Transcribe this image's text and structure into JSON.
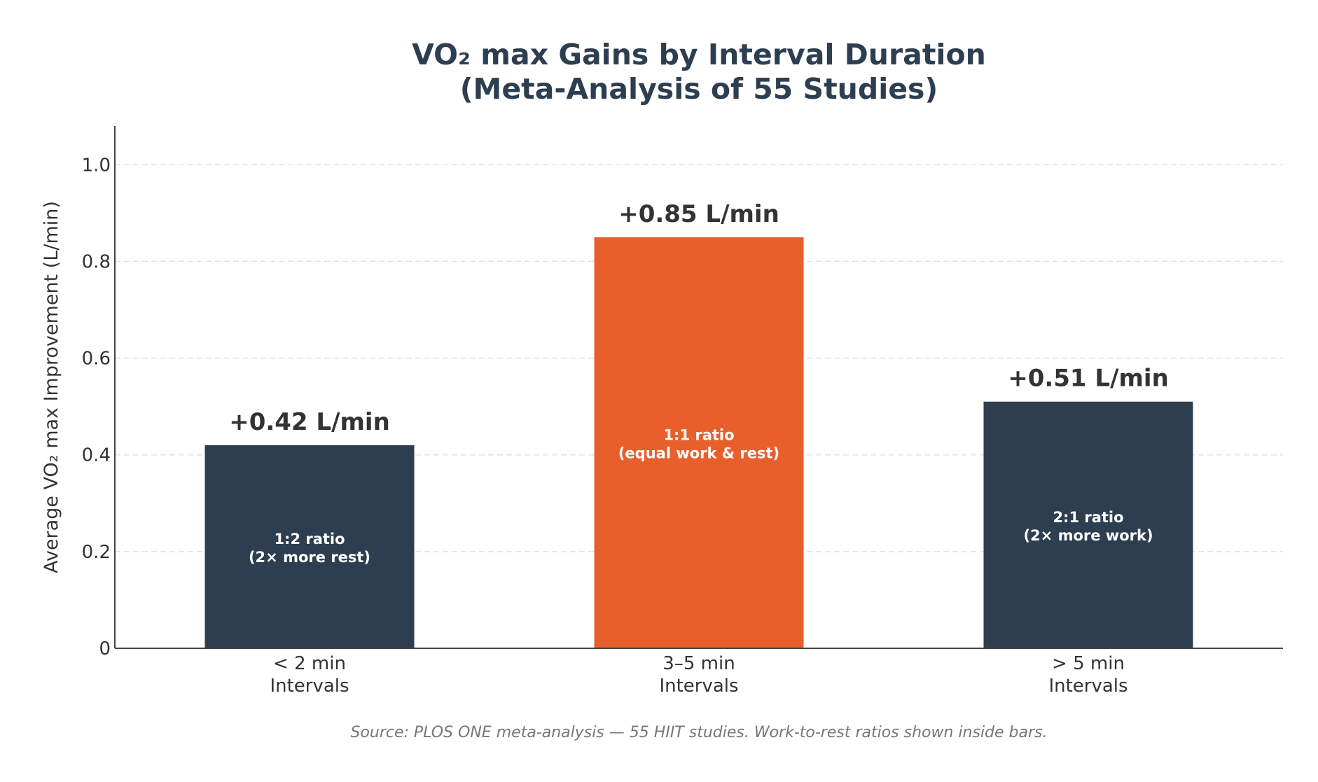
{
  "chart_data": {
    "type": "bar",
    "title": [
      "VO₂ max Gains by Interval Duration",
      "(Meta-Analysis of 55 Studies)"
    ],
    "xlabel": "",
    "ylabel": "Average VO₂ max Improvement (L/min)",
    "ylim": [
      0,
      1.08
    ],
    "yticks": [
      0,
      0.2,
      0.4,
      0.6,
      0.8,
      1.0
    ],
    "ytick_labels": [
      "0",
      "0.2",
      "0.4",
      "0.6",
      "0.8",
      "1.0"
    ],
    "grid": "horizontal dashed",
    "categories": [
      [
        "< 2 min",
        "Intervals"
      ],
      [
        "3–5 min",
        "Intervals"
      ],
      [
        "> 5 min",
        "Intervals"
      ]
    ],
    "values": [
      0.42,
      0.85,
      0.51
    ],
    "value_labels": [
      "+0.42 L/min",
      "+0.85 L/min",
      "+0.51 L/min"
    ],
    "inner_labels": [
      [
        "1:2 ratio",
        "(2× more rest)"
      ],
      [
        "1:1 ratio",
        "(equal work & rest)"
      ],
      [
        "2:1 ratio",
        "(2× more work)"
      ]
    ],
    "colors": [
      "#2d3e50",
      "#e85f2c",
      "#2d3e50"
    ],
    "source": "Source: PLOS ONE meta-analysis — 55 HIIT studies. Work-to-rest ratios shown inside bars."
  }
}
